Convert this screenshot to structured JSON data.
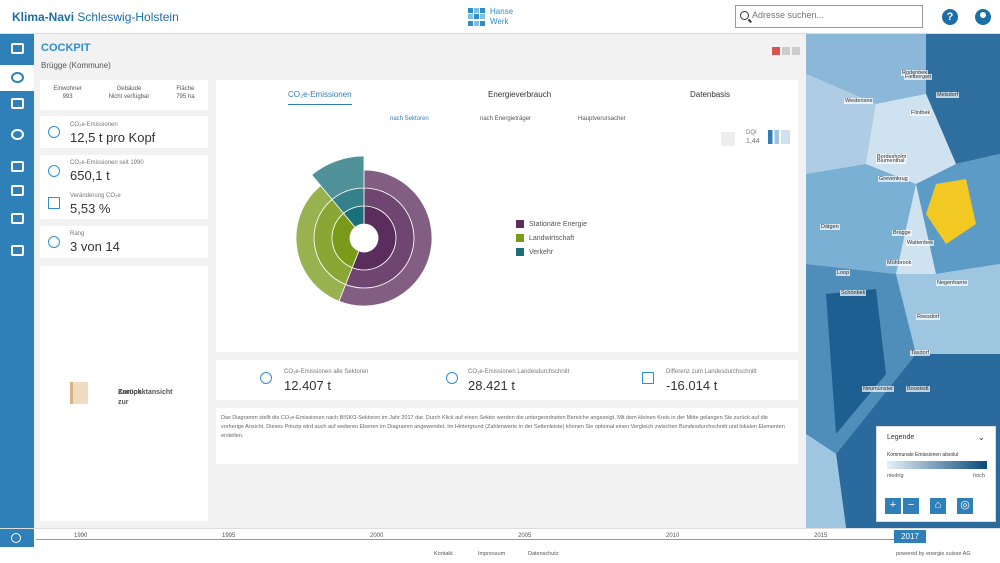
{
  "header": {
    "brand_bold": "Klima-Navi",
    "brand_rest": " Schleswig-Holstein",
    "logo_line1": "Hanse",
    "logo_line2": "Werk",
    "search_placeholder": "Adresse suchen...",
    "help_icon": "?"
  },
  "sidebar": {
    "items": [
      "info-card-icon",
      "cockpit-icon",
      "map-icon",
      "settings-icon",
      "data-icon",
      "table-icon",
      "chart-icon",
      "document-icon"
    ]
  },
  "cockpit": {
    "title": "COCKPIT",
    "subtitle": "Brügge (Kommune)",
    "stats": [
      {
        "label": "Einwohner",
        "value": "993"
      },
      {
        "label": "Gebäude",
        "value": "Nicht verfügbar"
      },
      {
        "label": "Fläche",
        "value": "795 ha"
      }
    ],
    "kpis": [
      {
        "label": "CO₂e-Emissionen",
        "value": "12,5 t pro Kopf"
      },
      {
        "label": "CO₂e-Emissionen seit 1990",
        "value": "650,1 t"
      },
      {
        "label": "Veränderung CO₂e",
        "value": "5,53 %"
      },
      {
        "label": "Rang",
        "value": "3 von 14"
      }
    ],
    "back_line1": "Zurück zur",
    "back_line2": "Kompaktansicht"
  },
  "tabs": [
    "CO₂e-Emissionen",
    "Energieverbrauch",
    "Datenbasis"
  ],
  "subtabs": [
    "nach Sektoren",
    "nach Energieträger",
    "Hauptverursacher"
  ],
  "dqi": {
    "label": "DQI",
    "value": "1,44"
  },
  "chart_data": {
    "type": "pie",
    "title": "",
    "categories": [
      "Stationäre Energie",
      "Landwirtschaft",
      "Verkehr"
    ],
    "values": [
      56,
      33,
      11
    ],
    "colors": [
      "#5b2d5c",
      "#7a9a1a",
      "#1b6f7a"
    ],
    "legend_position": "right"
  },
  "bottom_stats": [
    {
      "label": "CO₂e-Emissionen alle Sektoren",
      "value": "12.407 t"
    },
    {
      "label": "CO₂e-Emissionen Landesdurchschnitt",
      "value": "28.421 t"
    },
    {
      "label": "Differenz zum Landesdurchschnitt",
      "value": "-16.014 t"
    }
  ],
  "description": "Das Diagramm stellt die CO₂e-Emissionen nach BISKO-Sektoren im Jahr 2017 dar. Durch Klick auf einen Sektor werden die untergeordneten Bereiche angezeigt. Mit dem kleinen Kreis in der Mitte gelangen Sie zurück auf die vorherige Ansicht. Dieses Prinzip wird auch auf weiteren Ebenen im Diagramm angewendet. Im Hintergrund (Zahlenwerte in der Seitenleiste) können Sie optional einen Vergleich zwischen Bundesdurchschnitt und lokalen Elementen erstellen.",
  "map": {
    "labels": [
      "Rodenbek",
      "Westensee",
      "Flintbek",
      "Melsdorf",
      "Bordesholm",
      "Grevenkrug",
      "Wattenbek",
      "Mühbrook",
      "Negenharrie",
      "Loop",
      "Schönbek",
      "Dätgen",
      "Brügge",
      "Reesdorf",
      "Neumünster",
      "Blumenthal",
      "Tasdorf",
      "Boostedt",
      "Fiefbergen"
    ],
    "legend_title": "Legende",
    "legend_scale": "Kommunale Emissionen absolut",
    "legend_low": "niedrig",
    "legend_high": "hoch",
    "buttons": [
      "+",
      "−",
      "home-icon",
      "locate-icon"
    ]
  },
  "timeline": {
    "years": [
      "1990",
      "1995",
      "2000",
      "2005",
      "2010",
      "2015"
    ],
    "current_year": "2017",
    "footer_links": [
      "Kontakt",
      "Impressum",
      "Datenschutz"
    ],
    "powered": "powered by energie suisse AG"
  }
}
